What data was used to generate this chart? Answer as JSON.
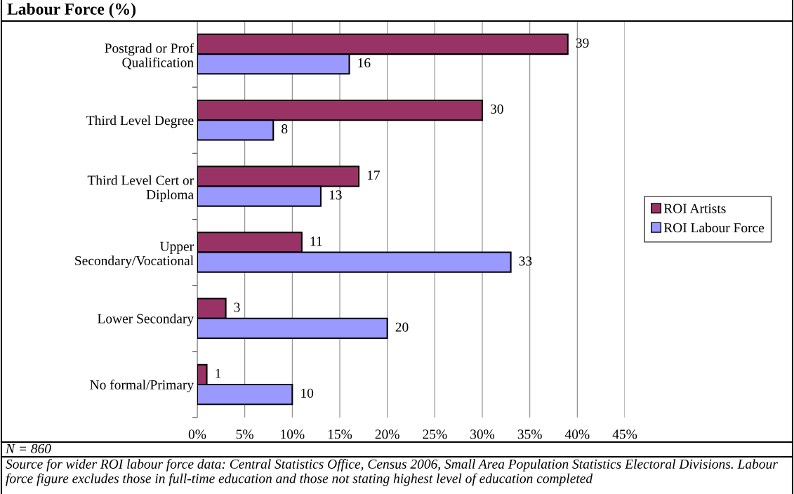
{
  "chart_data": {
    "type": "bar",
    "orientation": "horizontal",
    "title": "Labour Force (%)",
    "categories": [
      "Postgrad or Prof\nQualification",
      "Third Level Degree",
      "Third Level Cert or\nDiploma",
      "Upper\nSecondary/Vocational",
      "Lower Secondary",
      "No formal/Primary"
    ],
    "series": [
      {
        "name": "ROI Artists",
        "color": "#993366",
        "values": [
          39,
          30,
          17,
          11,
          3,
          1
        ]
      },
      {
        "name": "ROI Labour Force",
        "color": "#9999ff",
        "values": [
          16,
          8,
          13,
          33,
          20,
          10
        ]
      }
    ],
    "xlim": [
      0,
      45
    ],
    "xticks": [
      {
        "value": 0,
        "label": "0%"
      },
      {
        "value": 5,
        "label": "5%"
      },
      {
        "value": 10,
        "label": "10%"
      },
      {
        "value": 15,
        "label": "15%"
      },
      {
        "value": 20,
        "label": "20%"
      },
      {
        "value": 25,
        "label": "25%"
      },
      {
        "value": 30,
        "label": "30%"
      },
      {
        "value": 35,
        "label": "35%"
      },
      {
        "value": 40,
        "label": "40%"
      },
      {
        "value": 45,
        "label": "45%"
      }
    ],
    "grid": "x",
    "legend": "right",
    "data_labels": true,
    "annotations": [
      "N = 860",
      "Source for wider ROI labour force data: Central Statistics Office, Census 2006, Small Area Population Statistics Electoral Divisions. Labour force figure excludes those in full-time education and those not stating highest level of education completed"
    ]
  }
}
